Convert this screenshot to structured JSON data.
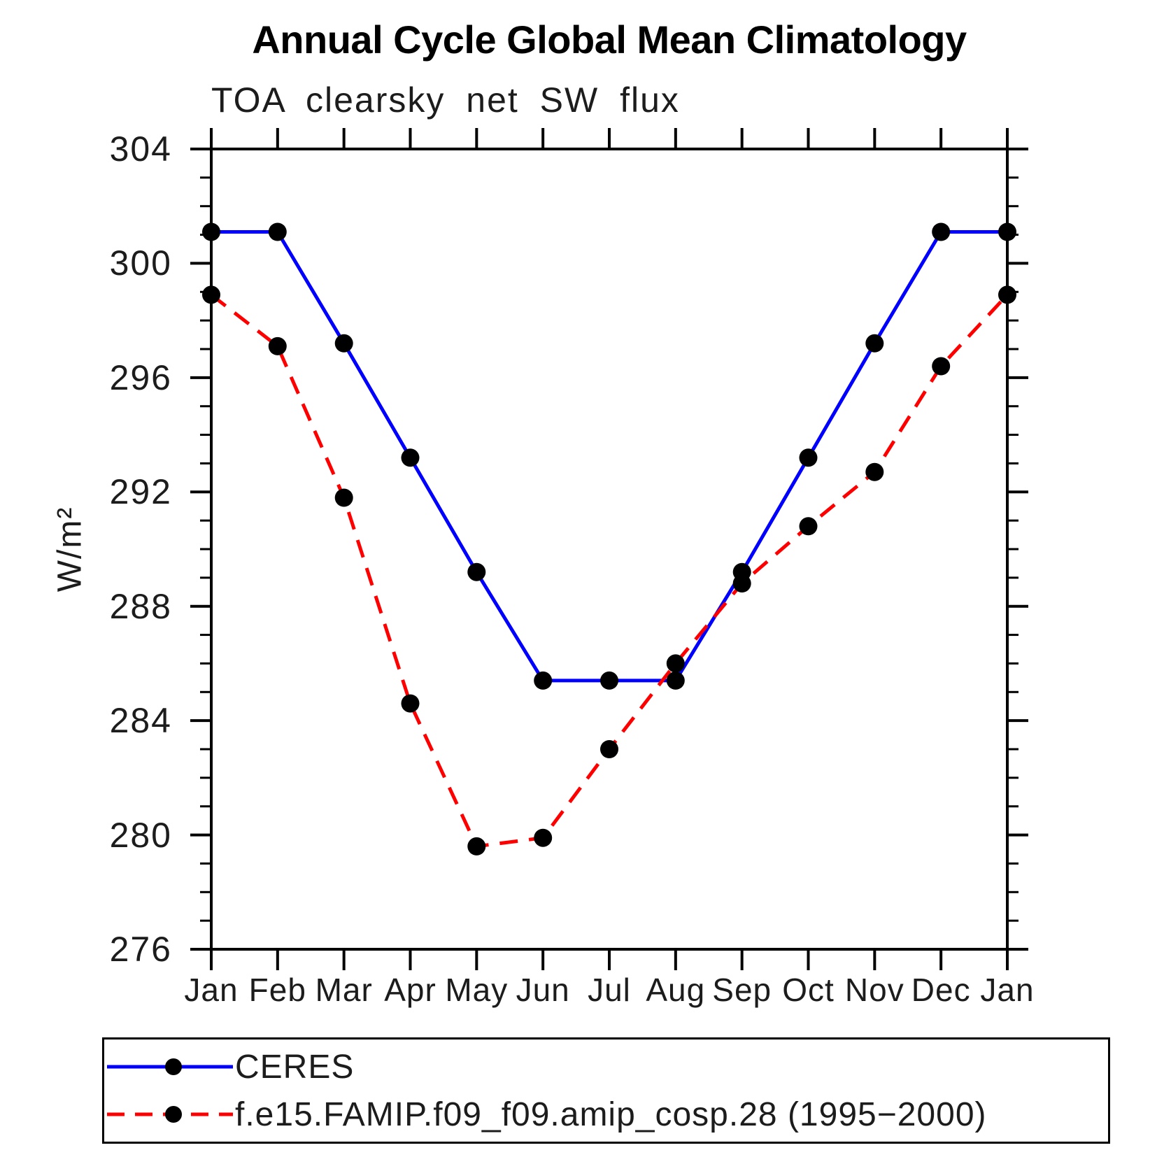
{
  "title": "Annual Cycle Global Mean Climatology",
  "subtitle": "TOA clearsky net SW flux",
  "y_axis": {
    "label": "W/m²",
    "tick_labels": [
      "304",
      "300",
      "296",
      "292",
      "288",
      "284",
      "280",
      "276"
    ]
  },
  "x_axis": {
    "tick_labels": [
      "Jan",
      "Feb",
      "Mar",
      "Apr",
      "May",
      "Jun",
      "Jul",
      "Aug",
      "Sep",
      "Oct",
      "Nov",
      "Dec",
      "Jan"
    ]
  },
  "legend": {
    "items": [
      {
        "label": "CERES",
        "color": "#0000ff",
        "line_style": "solid",
        "marker": "filled-circle",
        "marker_color": "#000000"
      },
      {
        "label": "f.e15.FAMIP.f09_f09.amip_cosp.28 (1995−2000)",
        "color": "#ff0000",
        "line_style": "dashed",
        "marker": "filled-circle",
        "marker_color": "#000000"
      }
    ]
  },
  "chart_data": {
    "type": "line",
    "title": "Annual Cycle Global Mean Climatology",
    "subtitle": "TOA clearsky net SW flux",
    "xlabel": "",
    "ylabel": "W/m²",
    "categories": [
      "Jan",
      "Feb",
      "Mar",
      "Apr",
      "May",
      "Jun",
      "Jul",
      "Aug",
      "Sep",
      "Oct",
      "Nov",
      "Dec",
      "Jan"
    ],
    "ylim": [
      276,
      304
    ],
    "ytick_major_step": 4,
    "ytick_minor_step": 1,
    "grid": false,
    "legend_position": "bottom",
    "series": [
      {
        "name": "CERES",
        "color": "#0000ff",
        "line_style": "solid",
        "marker": "filled-circle",
        "marker_color": "#000000",
        "values": [
          301.1,
          301.1,
          297.2,
          293.2,
          289.2,
          285.4,
          285.4,
          285.4,
          289.2,
          293.2,
          297.2,
          301.1,
          301.1
        ]
      },
      {
        "name": "f.e15.FAMIP.f09_f09.amip_cosp.28 (1995−2000)",
        "color": "#ff0000",
        "line_style": "dashed",
        "marker": "filled-circle",
        "marker_color": "#000000",
        "values": [
          298.9,
          297.1,
          291.8,
          284.6,
          279.6,
          279.9,
          283.0,
          286.0,
          288.8,
          290.8,
          292.7,
          296.4,
          298.9
        ]
      }
    ]
  }
}
